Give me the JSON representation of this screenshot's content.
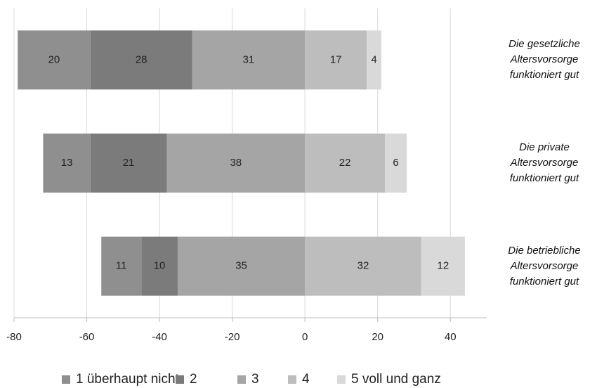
{
  "chart_data": {
    "type": "diverging-bar",
    "categories": [
      "Die gesetzliche Altersvorsorge funktioniert gut",
      "Die private Altersvorsorge funktioniert gut",
      "Die betriebliche Altersvorsorge funktioniert gut"
    ],
    "series": [
      {
        "name": "1 überhaupt nicht",
        "color": "#8f8f8f",
        "direction": "left",
        "values": [
          20,
          13,
          11
        ]
      },
      {
        "name": "2",
        "color": "#7b7b7b",
        "direction": "left",
        "values": [
          28,
          21,
          10
        ]
      },
      {
        "name": "3",
        "color": "#a5a5a5",
        "direction": "left",
        "values": [
          31,
          38,
          35
        ]
      },
      {
        "name": "4",
        "color": "#bdbdbd",
        "direction": "right",
        "values": [
          17,
          22,
          32
        ]
      },
      {
        "name": "5 voll und ganz",
        "color": "#d9d9d9",
        "direction": "right",
        "values": [
          4,
          6,
          12
        ]
      }
    ],
    "xlim": [
      -80,
      50
    ],
    "xticks": [
      -80,
      -60,
      -40,
      -20,
      0,
      20,
      40
    ],
    "grid": true,
    "legend": "bottom"
  }
}
